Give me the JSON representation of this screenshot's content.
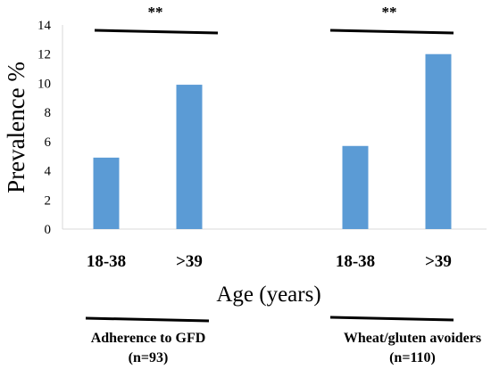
{
  "chart_data": {
    "type": "bar",
    "ylabel": "Prevalence %",
    "xlabel": "Age (years)",
    "ylim": [
      0,
      14
    ],
    "yticks": [
      "0",
      "2",
      "4",
      "6",
      "8",
      "10",
      "12",
      "14"
    ],
    "grid": false,
    "bar_color": "#5B9BD5",
    "groups": [
      {
        "label": "Adherence to GFD",
        "n_label": "(n=93)",
        "significance": "**",
        "categories": [
          "18-38",
          ">39"
        ],
        "values": [
          4.9,
          9.9
        ]
      },
      {
        "label": "Wheat/gluten avoiders",
        "n_label": "(n=110)",
        "significance": "**",
        "categories": [
          "18-38",
          ">39"
        ],
        "values": [
          5.7,
          12.0
        ]
      }
    ]
  }
}
